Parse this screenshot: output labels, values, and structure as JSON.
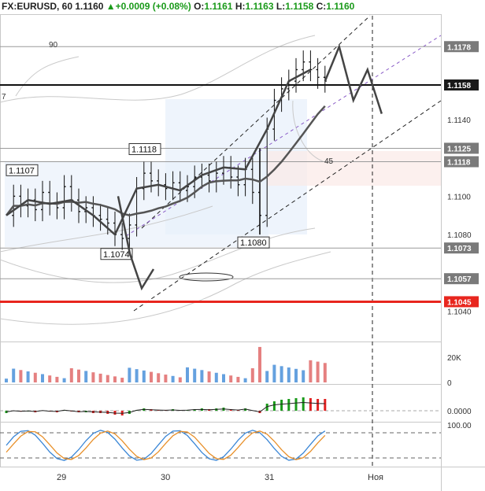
{
  "header": {
    "symbol": "FX:EURUSD, 60",
    "last": "1.1160",
    "change": "+0.0009 (+0.08%)",
    "o_label": "O:",
    "o": "1.1161",
    "h_label": "H:",
    "h": "1.1163",
    "l_label": "L:",
    "l": "1.1158",
    "c_label": "C:",
    "c": "1.1160",
    "up_arrow": "▲"
  },
  "colors": {
    "up": "#1a9a1a",
    "down": "#e02020",
    "price_line": "#3d3d3d",
    "support": "#e8261e",
    "volume": "#4a90d9",
    "ma": "#4a4a4a"
  },
  "chart_data": [
    {
      "type": "line",
      "name": "price",
      "x_labels": [
        "29",
        "30",
        "31",
        "Ноя"
      ],
      "ylim": [
        1.103,
        1.119
      ],
      "axis_ticks": [
        "1.1140",
        "1.1100",
        "1.1080",
        "1.1040"
      ],
      "level_labels": [
        {
          "value": 1.1178,
          "label": "1.1178",
          "dark": false
        },
        {
          "value": 1.1158,
          "label": "1.1158",
          "dark": true
        },
        {
          "value": 1.1125,
          "label": "1.1125",
          "dark": false
        },
        {
          "value": 1.1118,
          "label": "1.1118",
          "dark": false
        },
        {
          "value": 1.1073,
          "label": "1.1073",
          "dark": false
        },
        {
          "value": 1.1057,
          "label": "1.1057",
          "dark": false
        },
        {
          "value": 1.1045,
          "label": "1.1045",
          "dark": false,
          "red": true
        }
      ],
      "callouts": [
        {
          "label": "1.1107",
          "value": 1.1107
        },
        {
          "label": "1.1118",
          "value": 1.1118
        },
        {
          "label": "1.1074",
          "value": 1.1074
        },
        {
          "label": "1.1080",
          "value": 1.108
        }
      ],
      "annotations": [
        "90",
        "7",
        "45"
      ],
      "close_path": [
        1.109,
        1.11,
        1.1095,
        1.1098,
        1.1093,
        1.1102,
        1.1096,
        1.1094,
        1.1105,
        1.1098,
        1.1092,
        1.1094,
        1.109,
        1.1088,
        1.1086,
        1.108,
        1.1078,
        1.1085,
        1.1104,
        1.1112,
        1.1108,
        1.1106,
        1.1104,
        1.1107,
        1.1103,
        1.1105,
        1.111,
        1.1111,
        1.1108,
        1.1112,
        1.1115,
        1.111,
        1.1106,
        1.1114,
        1.1102,
        1.109,
        1.1135,
        1.115,
        1.1156,
        1.116,
        1.1166,
        1.117,
        1.1166,
        1.1162,
        1.116
      ],
      "projection_path": [
        1.116,
        1.1178,
        1.115,
        1.1166,
        1.1143
      ],
      "projection_low_path": [
        1.11,
        1.107,
        1.1052,
        1.1062
      ]
    },
    {
      "type": "bar",
      "name": "volume",
      "axis_ticks": [
        "20K",
        "0"
      ],
      "ylim": [
        0,
        30000
      ]
    },
    {
      "type": "bar",
      "name": "macd_histogram",
      "axis_ticks": [
        "0.0000"
      ]
    },
    {
      "type": "line",
      "name": "stochastic",
      "axis_ticks": [
        "100.00"
      ],
      "ylim": [
        0,
        100
      ]
    }
  ]
}
